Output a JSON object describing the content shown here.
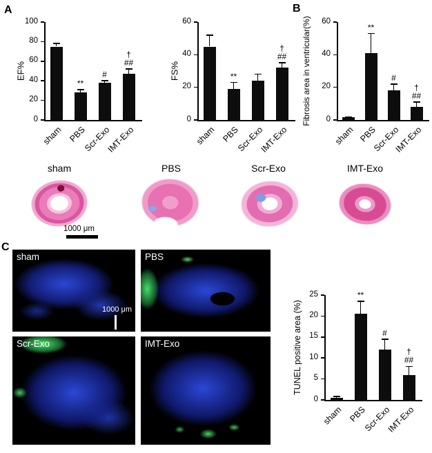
{
  "panels": {
    "a": "A",
    "b": "B",
    "c": "C"
  },
  "chart_data": [
    {
      "type": "bar",
      "id": "ef",
      "ylabel": "EF%",
      "ylim": [
        0,
        100
      ],
      "ymax": 100,
      "ystep": 20,
      "categories": [
        "sham",
        "PBS",
        "Scr-Exo",
        "IMT-Exo"
      ],
      "values": [
        75,
        28,
        38,
        47
      ],
      "errors": [
        3,
        3,
        2,
        5
      ],
      "annotations": [
        "",
        "**",
        "#",
        "†\n##"
      ]
    },
    {
      "type": "bar",
      "id": "fs",
      "ylabel": "FS%",
      "ylim": [
        0,
        60
      ],
      "ymax": 60,
      "ystep": 20,
      "categories": [
        "sham",
        "PBS",
        "Scr-Exo",
        "IMT-Exo"
      ],
      "values": [
        45,
        19,
        24,
        32
      ],
      "errors": [
        7,
        4,
        4,
        3
      ],
      "annotations": [
        "",
        "**",
        "",
        "†\n##"
      ]
    },
    {
      "type": "bar",
      "id": "fibrosis",
      "ylabel": "Fibrosis area in ventricular(%)",
      "ylim": [
        0,
        60
      ],
      "ymax": 60,
      "ystep": 20,
      "categories": [
        "sham",
        "PBS",
        "Scr-Exo",
        "IMT-Exo"
      ],
      "values": [
        1.5,
        41,
        18,
        8
      ],
      "errors": [
        0.5,
        12,
        4,
        3
      ],
      "annotations": [
        "",
        "**",
        "#",
        "†\n##"
      ]
    },
    {
      "type": "bar",
      "id": "tunel",
      "ylabel": "TUNEL positive area (%)",
      "ylim": [
        0,
        25
      ],
      "ymax": 25,
      "ystep": 5,
      "categories": [
        "sham",
        "PBS",
        "Scr-Exo",
        "IMT-Exo"
      ],
      "values": [
        0.5,
        20.5,
        12,
        6
      ],
      "errors": [
        0.3,
        3,
        2.5,
        2
      ],
      "annotations": [
        "",
        "**",
        "#",
        "†\n##"
      ]
    }
  ],
  "histology": {
    "labels": [
      "sham",
      "PBS",
      "Scr-Exo",
      "IMT-Exo"
    ],
    "scale_bar": "1000 μm"
  },
  "tunel_images": {
    "labels": [
      "sham",
      "PBS",
      "Scr-Exo",
      "IMT-Exo"
    ],
    "scale_bar": "1000 μm"
  },
  "colors": {
    "bar": "#0d0d0d",
    "nuclei_blue": "#2a46d8",
    "tunel_green": "#43e26e",
    "stain_pink": "#e46cb0"
  }
}
